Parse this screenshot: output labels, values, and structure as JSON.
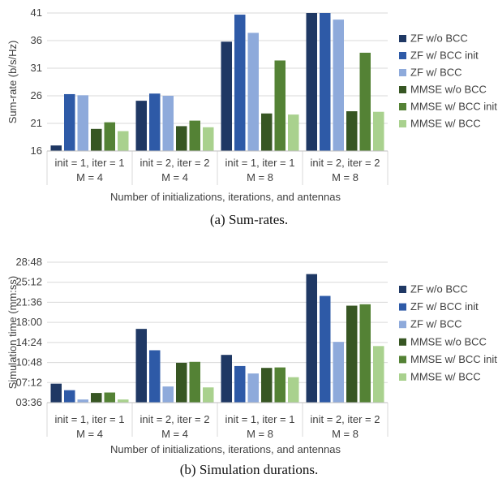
{
  "legend_colors": [
    "#1f3864",
    "#2e5aa7",
    "#8eaadb",
    "#375623",
    "#548235",
    "#a9d18e"
  ],
  "captions": {
    "top": "(a)  Sum-rates.",
    "bottom": "(b)  Simulation durations."
  },
  "chart_data": [
    {
      "type": "bar",
      "title": "",
      "ylabel": "Sum-rate (b/s/Hz)",
      "xlabel": "Number of initializations, iterations, and antennas",
      "categories": [
        [
          "init = 1, iter = 1",
          "M = 4"
        ],
        [
          "init = 2, iter = 2",
          "M = 4"
        ],
        [
          "init = 1, iter = 1",
          "M = 8"
        ],
        [
          "init = 2, iter = 2",
          "M = 8"
        ]
      ],
      "ylim": [
        16,
        41
      ],
      "yticks": [
        16,
        21,
        26,
        31,
        36,
        41
      ],
      "ytick_labels": [
        "16",
        "21",
        "26",
        "31",
        "36",
        "41"
      ],
      "grid": true,
      "legend_position": "right",
      "series": [
        {
          "name": "ZF w/o BCC",
          "values": [
            17.0,
            25.1,
            35.8,
            41.0
          ]
        },
        {
          "name": "ZF w/ BCC init",
          "values": [
            26.3,
            26.4,
            40.7,
            41.0
          ]
        },
        {
          "name": "ZF w/ BCC",
          "values": [
            26.1,
            26.0,
            37.4,
            39.8
          ]
        },
        {
          "name": "MMSE w/o BCC",
          "values": [
            20.0,
            20.5,
            22.8,
            23.2
          ]
        },
        {
          "name": "MMSE w/ BCC init",
          "values": [
            21.2,
            21.5,
            32.4,
            33.8
          ]
        },
        {
          "name": "MMSE w/ BCC",
          "values": [
            19.6,
            20.3,
            22.6,
            23.1
          ]
        }
      ]
    },
    {
      "type": "bar",
      "title": "",
      "ylabel": "Simulation time (mm:ss)",
      "xlabel": "Number of initializations, iterations, and antennas",
      "categories": [
        [
          "init = 1, iter = 1",
          "M = 4"
        ],
        [
          "init = 2, iter = 2",
          "M = 4"
        ],
        [
          "init = 1, iter = 1",
          "M = 8"
        ],
        [
          "init = 2, iter = 2",
          "M = 8"
        ]
      ],
      "ylim": [
        "03:36",
        "28:48"
      ],
      "yticks": [
        "03:36",
        "07:12",
        "10:48",
        "14:24",
        "18:00",
        "21:36",
        "25:12",
        "28:48"
      ],
      "ytick_labels": [
        "03:36",
        "07:12",
        "10:48",
        "14:24",
        "18:00",
        "21:36",
        "25:12",
        "28:48"
      ],
      "grid": true,
      "legend_position": "right",
      "series": [
        {
          "name": "ZF w/o BCC",
          "values": [
            "07:00",
            "16:50",
            "12:10",
            "26:40"
          ]
        },
        {
          "name": "ZF w/ BCC init",
          "values": [
            "05:50",
            "13:00",
            "10:10",
            "22:45"
          ]
        },
        {
          "name": "ZF w/ BCC",
          "values": [
            "04:10",
            "06:30",
            "08:50",
            "14:30"
          ]
        },
        {
          "name": "MMSE w/o BCC",
          "values": [
            "05:20",
            "10:45",
            "09:50",
            "21:00"
          ]
        },
        {
          "name": "MMSE w/ BCC init",
          "values": [
            "05:25",
            "10:55",
            "09:55",
            "21:15"
          ]
        },
        {
          "name": "MMSE w/ BCC",
          "values": [
            "04:10",
            "06:20",
            "08:10",
            "13:45"
          ]
        }
      ]
    }
  ]
}
